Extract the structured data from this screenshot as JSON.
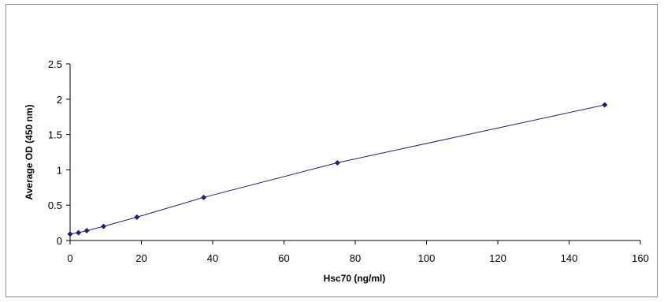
{
  "chart_data": {
    "type": "scatter",
    "title": "",
    "xlabel": "Hsc70  (ng/ml)",
    "ylabel": "Average OD (450 nm)",
    "xlim": [
      0,
      160
    ],
    "ylim": [
      0,
      2.5
    ],
    "x_ticks": [
      "0",
      "20",
      "40",
      "60",
      "80",
      "100",
      "120",
      "140",
      "160"
    ],
    "y_ticks": [
      "0",
      "0.5",
      "1",
      "1.5",
      "2",
      "2.5"
    ],
    "grid": false,
    "legend": "none",
    "series": [
      {
        "color": "#1f1f6e",
        "points": [
          {
            "x": 0,
            "y": 0.09
          },
          {
            "x": 2.34,
            "y": 0.11
          },
          {
            "x": 4.69,
            "y": 0.14
          },
          {
            "x": 9.38,
            "y": 0.2
          },
          {
            "x": 18.75,
            "y": 0.33
          },
          {
            "x": 37.5,
            "y": 0.61
          },
          {
            "x": 75,
            "y": 1.1
          },
          {
            "x": 150,
            "y": 1.92
          }
        ]
      }
    ]
  }
}
